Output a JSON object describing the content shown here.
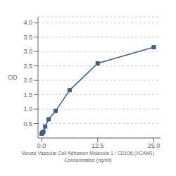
{
  "chart_data": {
    "type": "line",
    "x": [
      0,
      0.1,
      0.2,
      0.4,
      0.8,
      1.563,
      3.125,
      6.25,
      12.5,
      25
    ],
    "values": [
      0.148,
      0.163,
      0.188,
      0.218,
      0.398,
      0.648,
      0.938,
      1.658,
      2.588,
      3.148
    ],
    "color": "#3a6090",
    "marker": "square",
    "xlabel": "Mouse Vascular Cell Adhesion Molecule 1 / CD106 (VCAM1)\nConcentration (ng/ml)",
    "ylabel": "OD",
    "xlim": [
      -0.8,
      26.5
    ],
    "ylim": [
      0,
      4.2
    ],
    "xticks": [
      {
        "value": 0,
        "label": "0.0"
      },
      12.5,
      {
        "value": 25,
        "label": "25.0"
      }
    ],
    "yticks": [
      0.5,
      {
        "value": 1,
        "label": "1.0"
      },
      1.5,
      {
        "value": 2,
        "label": "2.0"
      },
      2.5,
      {
        "value": 3,
        "label": "3.0"
      },
      3.5,
      {
        "value": 4,
        "label": "4.0"
      }
    ],
    "grid": true
  }
}
